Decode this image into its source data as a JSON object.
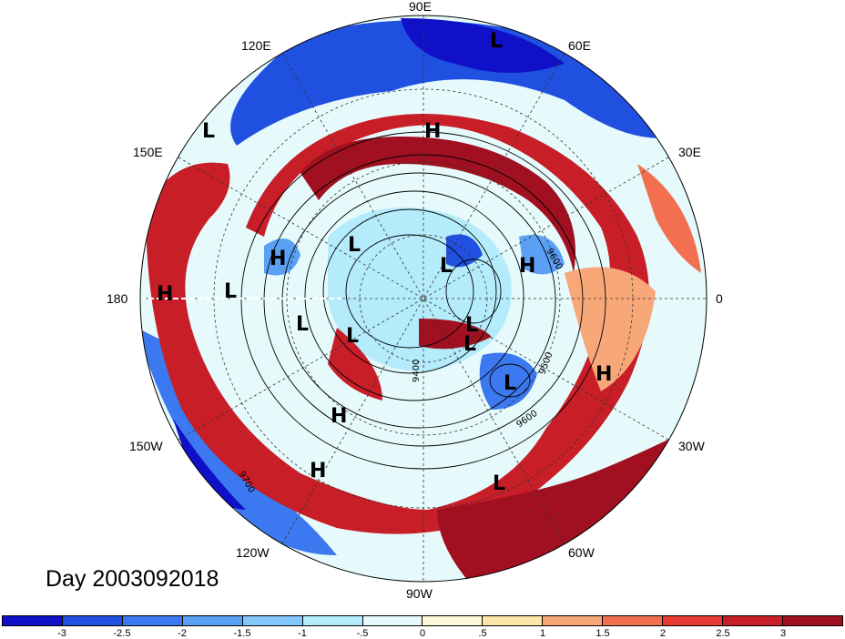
{
  "title": "Day 2003092018",
  "longitude_labels": {
    "n90e": "90E",
    "n120e": "120E",
    "n60e": "60E",
    "n150e": "150E",
    "n30e": "30E",
    "n180": "180",
    "n0": "0",
    "s150w": "150W",
    "s30w": "30W",
    "s120w": "120W",
    "s60w": "60W",
    "s90w": "90W"
  },
  "pressure_centers": [
    {
      "label": "L"
    },
    {
      "label": "L"
    },
    {
      "label": "H"
    },
    {
      "label": "L"
    },
    {
      "label": "H"
    },
    {
      "label": "L"
    },
    {
      "label": "L"
    },
    {
      "label": "H"
    },
    {
      "label": "H"
    },
    {
      "label": "L"
    },
    {
      "label": "L"
    },
    {
      "label": "L"
    },
    {
      "label": "L"
    },
    {
      "label": "L"
    },
    {
      "label": "H"
    },
    {
      "label": "H"
    },
    {
      "label": "H"
    },
    {
      "label": "L"
    }
  ],
  "contour_labels": [
    "9500",
    "9600",
    "9600",
    "9700",
    "9400"
  ],
  "colorbar": {
    "colors": [
      "#1010c8",
      "#2050e0",
      "#3c78f0",
      "#5aa0f5",
      "#82c8fa",
      "#b4ecfc",
      "#e6fafc",
      "#fcf8d8",
      "#fce6a8",
      "#f8a878",
      "#f27050",
      "#e63a32",
      "#c81e28",
      "#a01020"
    ],
    "tick_labels": [
      "-3",
      "-2.5",
      "-2",
      "-1.5",
      "-1",
      "-.5",
      "0",
      ".5",
      "1",
      "1.5",
      "2",
      "2.5",
      "3"
    ]
  }
}
